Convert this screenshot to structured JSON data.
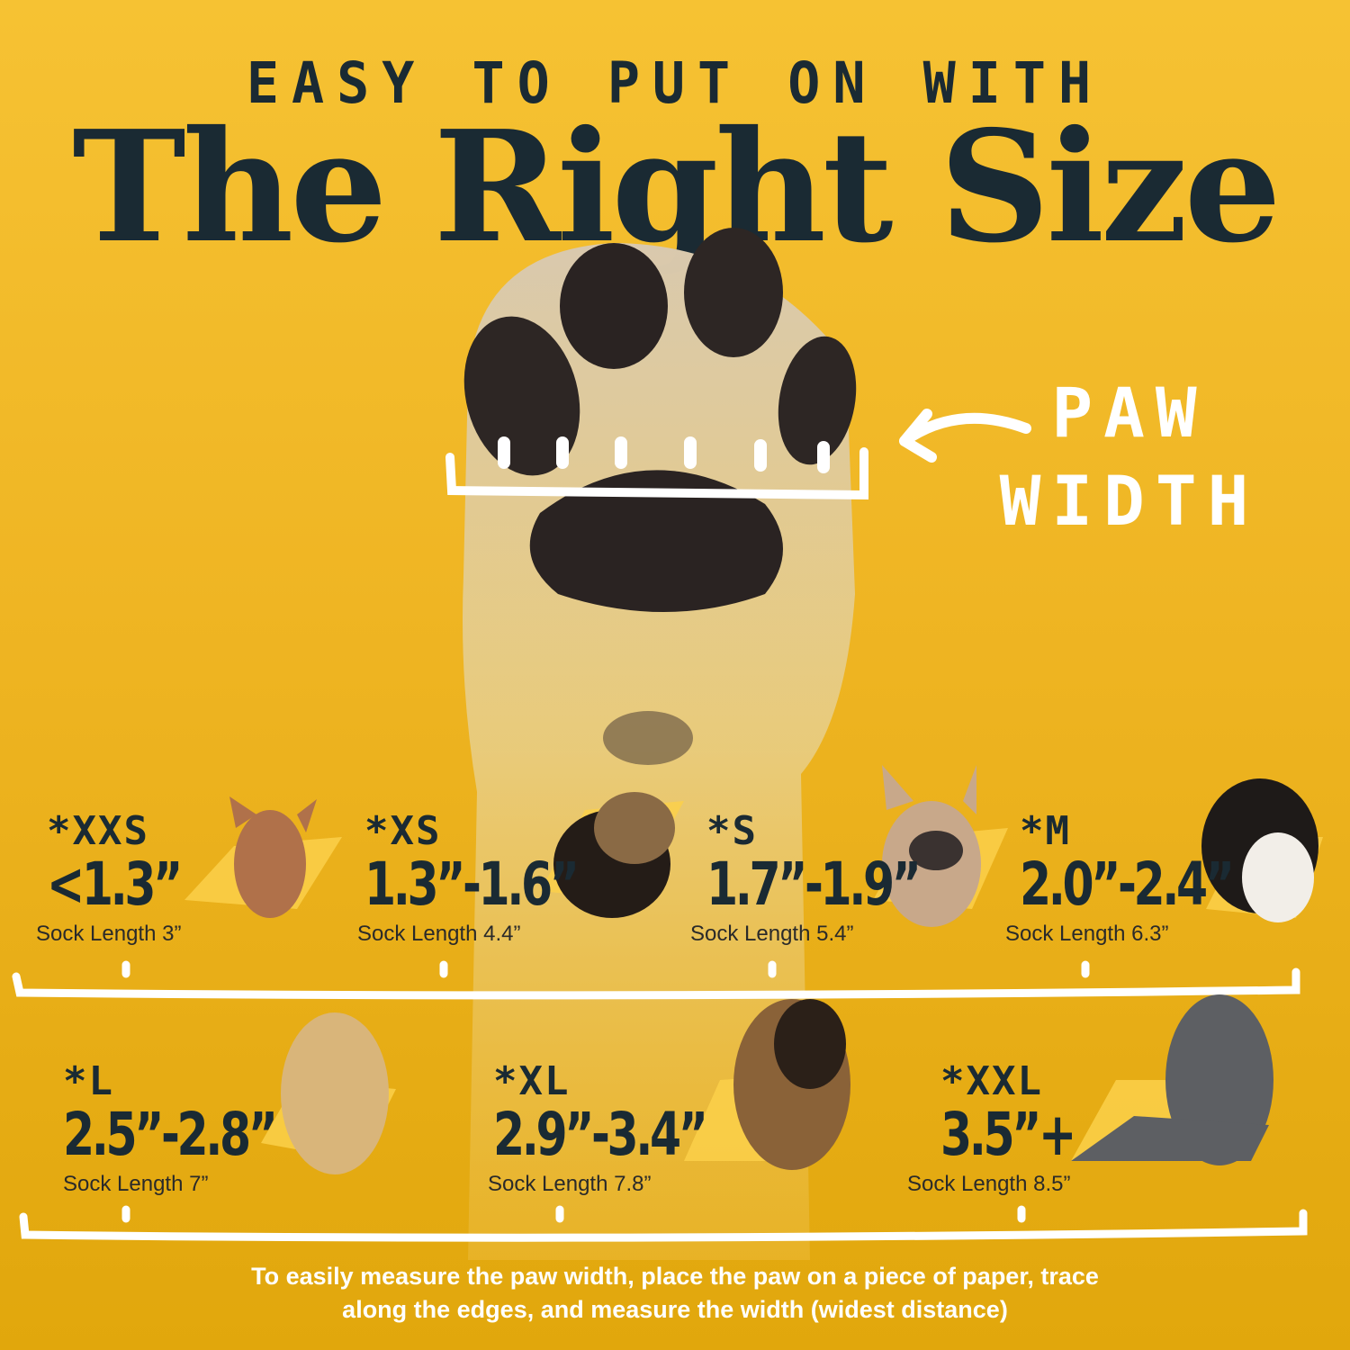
{
  "header": {
    "subtitle": "EASY TO PUT ON WITH",
    "title": "The Right Size"
  },
  "paw_label": {
    "line1": "PAW",
    "line2": "WIDTH"
  },
  "sizes": [
    {
      "name": "*XXS",
      "range": "<1.3”",
      "sock": "Sock Length 3”",
      "dog": "chihuahua"
    },
    {
      "name": "*XS",
      "range": "1.3”-1.6”",
      "sock": "Sock Length 4.4”",
      "dog": "yorkshire-terrier"
    },
    {
      "name": "*S",
      "range": "1.7”-1.9”",
      "sock": "Sock Length 5.4”",
      "dog": "french-bulldog"
    },
    {
      "name": "*M",
      "range": "2.0”-2.4”",
      "sock": "Sock Length 6.3”",
      "dog": "bernese-mountain-dog"
    },
    {
      "name": "*L",
      "range": "2.5”-2.8”",
      "sock": "Sock Length 7”",
      "dog": "golden-retriever"
    },
    {
      "name": "*XL",
      "range": "2.9”-3.4”",
      "sock": "Sock Length 7.8”",
      "dog": "german-shepherd"
    },
    {
      "name": "*XXL",
      "range": "3.5”+",
      "sock": "Sock Length 8.5”",
      "dog": "great-dane"
    }
  ],
  "footer": {
    "line1": "To easily measure the paw width, place the paw on a piece of paper, trace",
    "line2": "along the edges, and measure the width (widest distance)"
  },
  "colors": {
    "background": "#efb523",
    "text": "#1a2a33",
    "accent_stroke": "#ffffff",
    "brush": "#fcd04a"
  }
}
